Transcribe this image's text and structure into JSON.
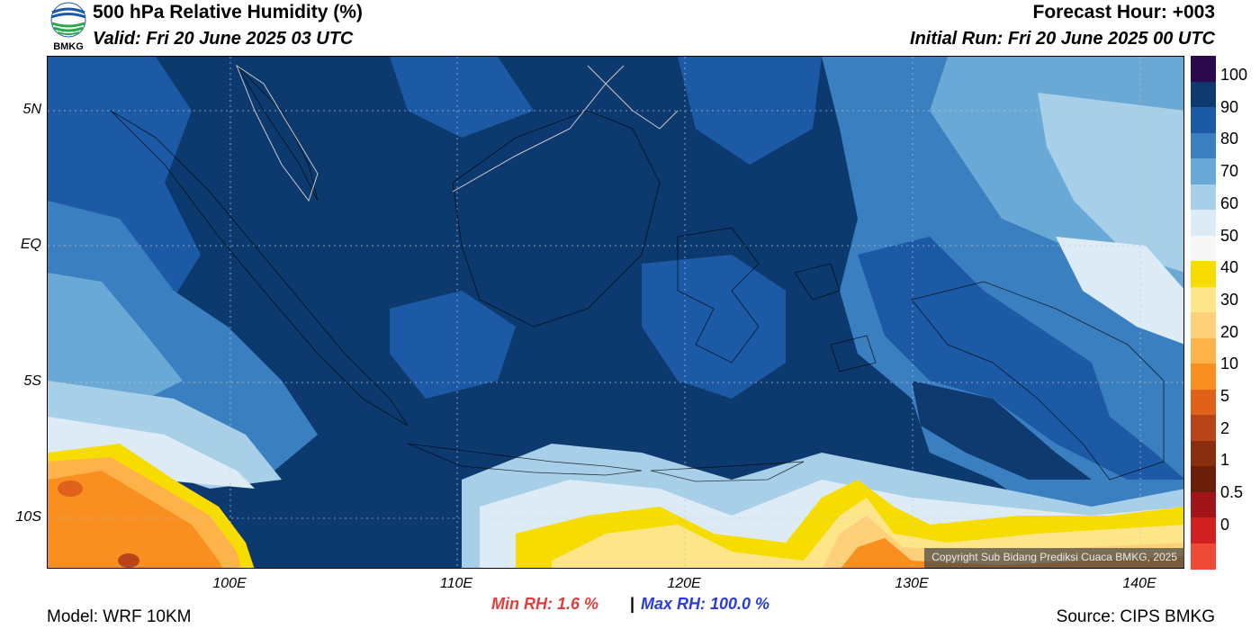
{
  "header": {
    "logo_text": "BMKG",
    "title": "500 hPa Relative Humidity (%)",
    "valid": "Valid: Fri 20 June 2025 03 UTC",
    "forecast_hour": "Forecast Hour: +003",
    "initial_run": "Initial Run: Fri 20 June 2025 00 UTC"
  },
  "map": {
    "lat_labels": [
      "5N",
      "EQ",
      "5S",
      "10S"
    ],
    "lon_labels": [
      "100E",
      "110E",
      "120E",
      "130E",
      "140E"
    ],
    "copyright": "Copyright Sub Bidang Prediksi Cuaca BMKG, 2025",
    "colors": {
      "ocean_dark": "#0d3a6e",
      "high_humidity": "#1a5aa8",
      "mid_humidity": "#4a8cc8",
      "low_blue": "#8fbde0",
      "pale": "#d5e8f3",
      "dry_yellow": "#f5d400",
      "dry_orange": "#f8a030"
    }
  },
  "colorbar": {
    "labels": [
      "100",
      "90",
      "80",
      "70",
      "60",
      "50",
      "40",
      "30",
      "20",
      "10",
      "5",
      "2",
      "1",
      "0.5",
      "0"
    ],
    "colors": [
      "#2a0a4a",
      "#0e3a70",
      "#1d5aa6",
      "#3a7fc0",
      "#6aa8d6",
      "#a8cfe8",
      "#dcebf5",
      "#f7f7f7",
      "#f7dc00",
      "#fde68a",
      "#fed07a",
      "#fdb24a",
      "#f98f1f",
      "#e0621a",
      "#b8441a",
      "#8a2e10",
      "#6b1e0a",
      "#a0141a",
      "#d02020",
      "#ee4a36"
    ]
  },
  "footer": {
    "min_rh": "Min RH:   1.6 %",
    "separator": "|",
    "max_rh": "Max RH: 100.0 %",
    "model": "Model: WRF 10KM",
    "source": "Source: CIPS BMKG"
  }
}
